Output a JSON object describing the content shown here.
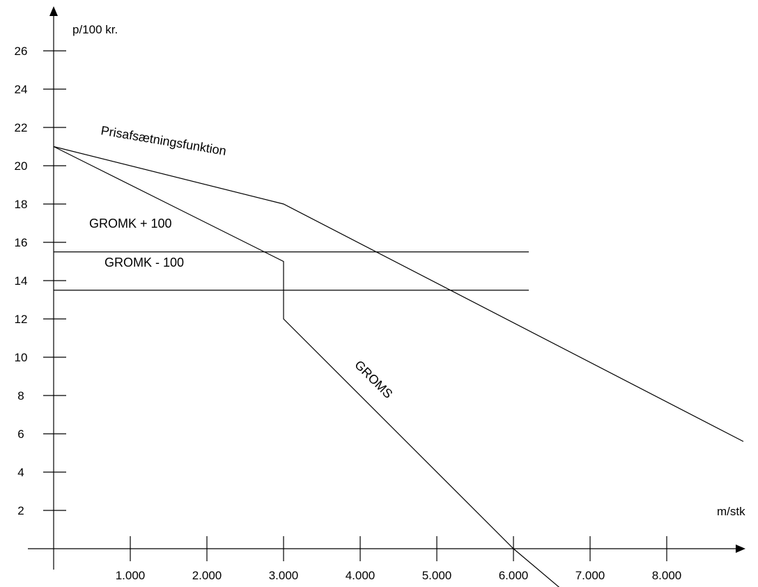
{
  "chart_data": {
    "type": "line",
    "title": "",
    "xlabel": "m/stk",
    "ylabel": "p/100 kr.",
    "xlim": [
      0,
      9000
    ],
    "ylim": [
      0,
      26
    ],
    "grid": false,
    "legend": "none",
    "x_ticks": [
      1000,
      2000,
      3000,
      4000,
      5000,
      6000,
      7000,
      8000
    ],
    "x_tick_labels": [
      "1.000",
      "2.000",
      "3.000",
      "4.000",
      "5.000",
      "6.000",
      "7.000",
      "8.000"
    ],
    "y_ticks": [
      2,
      4,
      6,
      8,
      10,
      12,
      14,
      16,
      18,
      20,
      22,
      24,
      26
    ],
    "y_tick_labels": [
      "2",
      "4",
      "6",
      "8",
      "10",
      "12",
      "14",
      "16",
      "18",
      "20",
      "22",
      "24",
      "26"
    ],
    "series": [
      {
        "name": "Prisafsætningsfunktion",
        "points": [
          [
            0,
            21
          ],
          [
            3000,
            18
          ],
          [
            9000,
            5.6
          ]
        ]
      },
      {
        "name": "GROMS",
        "points": [
          [
            0,
            21
          ],
          [
            3000,
            15
          ],
          [
            3000,
            12
          ],
          [
            6000,
            0
          ],
          [
            6800,
            -2.7
          ]
        ]
      },
      {
        "name": "GROMK + 100",
        "points": [
          [
            0,
            15.5
          ],
          [
            6200,
            15.5
          ]
        ]
      },
      {
        "name": "GROMK - 100",
        "points": [
          [
            0,
            13.5
          ],
          [
            6200,
            13.5
          ]
        ]
      }
    ]
  }
}
